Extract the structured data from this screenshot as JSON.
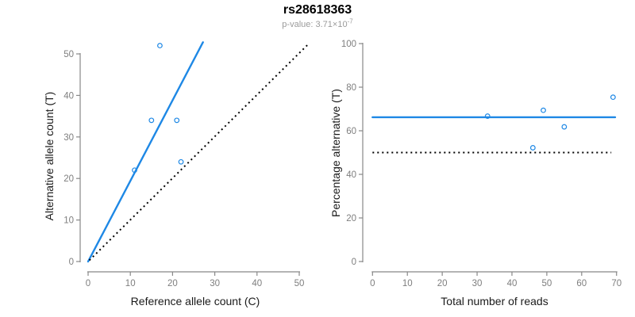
{
  "header": {
    "title": "rs28618363",
    "subtitle_main": "p-value: 3.71×10",
    "subtitle_exponent": "-7"
  },
  "colors": {
    "accent_blue": "#1E88E5",
    "axis_line_gray": "#888888",
    "tick_label_gray": "#7E7E7E",
    "axis_title_black": "#1a1a1a",
    "dotted_line_black": "#000000",
    "background": "#ffffff"
  },
  "chart_data": [
    {
      "type": "scatter",
      "panel": "left",
      "xlabel": "Reference allele count (C)",
      "ylabel": "Alternative allele count (T)",
      "xlim": [
        0,
        50
      ],
      "ylim": [
        0,
        50
      ],
      "xticks": [
        0,
        10,
        20,
        30,
        40,
        50
      ],
      "yticks": [
        0,
        10,
        20,
        30,
        40,
        50
      ],
      "grid": false,
      "legend": "none",
      "points": [
        [
          11,
          22
        ],
        [
          15,
          34
        ],
        [
          17,
          52
        ],
        [
          21,
          34
        ],
        [
          22,
          24
        ]
      ],
      "lines": [
        {
          "name": "fit-line",
          "style": "solid",
          "color_key": "accent_blue",
          "x1": 0,
          "y1": 0,
          "x2": 27.2,
          "y2": 52.8
        },
        {
          "name": "identity-line",
          "style": "dotted",
          "color_key": "dotted_line_black",
          "x1": 0.3,
          "y1": 0.3,
          "x2": 52.0,
          "y2": 52.2
        }
      ]
    },
    {
      "type": "scatter",
      "panel": "right",
      "xlabel": "Total number of reads",
      "ylabel": "Percentage alternative (T)",
      "xlim": [
        0,
        70
      ],
      "ylim": [
        0,
        100
      ],
      "xticks": [
        0,
        10,
        20,
        30,
        40,
        50,
        60,
        70
      ],
      "yticks": [
        0,
        20,
        40,
        60,
        80,
        100
      ],
      "grid": false,
      "legend": "none",
      "points": [
        [
          33,
          66.7
        ],
        [
          46,
          52.2
        ],
        [
          49,
          69.4
        ],
        [
          55,
          61.8
        ],
        [
          69,
          75.4
        ]
      ],
      "lines": [
        {
          "name": "mean-percentage-line",
          "style": "solid",
          "color_key": "accent_blue",
          "x1": 0,
          "y1": 66.2,
          "x2": 69.6,
          "y2": 66.2
        },
        {
          "name": "fifty-percent-line",
          "style": "dotted",
          "color_key": "dotted_line_black",
          "x1": 0,
          "y1": 50,
          "x2": 68.5,
          "y2": 50
        }
      ]
    }
  ]
}
